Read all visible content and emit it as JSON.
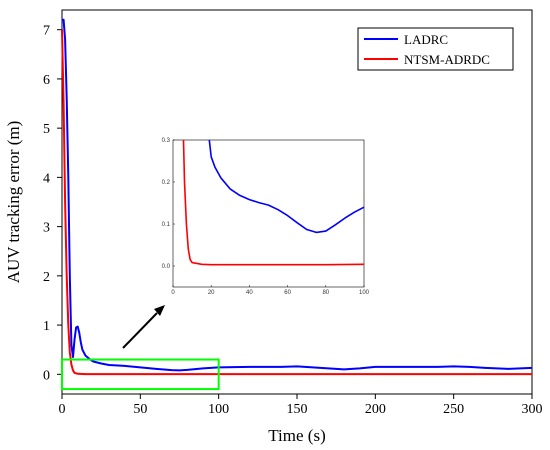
{
  "chart_data": {
    "type": "line",
    "xlabel": "Time (s)",
    "ylabel": "AUV tracking error (m)",
    "xlim": [
      0,
      300
    ],
    "ylim": [
      -0.4,
      7.4
    ],
    "x_ticks": [
      "0",
      "50",
      "100",
      "150",
      "200",
      "250",
      "300"
    ],
    "y_ticks": [
      "0",
      "1",
      "2",
      "3",
      "4",
      "5",
      "6",
      "7"
    ],
    "grid": false,
    "legend_position": "top-right",
    "series": [
      {
        "name": "LADRC",
        "color": "#0000ff",
        "points": [
          [
            0,
            7.2
          ],
          [
            1,
            7.2
          ],
          [
            2,
            6.8
          ],
          [
            3,
            5.6
          ],
          [
            4,
            4.0
          ],
          [
            5,
            2.0
          ],
          [
            6,
            0.6
          ],
          [
            7,
            0.35
          ],
          [
            8,
            0.7
          ],
          [
            9,
            0.95
          ],
          [
            10,
            0.97
          ],
          [
            11,
            0.85
          ],
          [
            12,
            0.65
          ],
          [
            13,
            0.5
          ],
          [
            15,
            0.38
          ],
          [
            18,
            0.3
          ],
          [
            20,
            0.26
          ],
          [
            25,
            0.22
          ],
          [
            30,
            0.19
          ],
          [
            40,
            0.17
          ],
          [
            50,
            0.14
          ],
          [
            60,
            0.11
          ],
          [
            70,
            0.085
          ],
          [
            75,
            0.08
          ],
          [
            80,
            0.09
          ],
          [
            90,
            0.12
          ],
          [
            100,
            0.14
          ],
          [
            120,
            0.15
          ],
          [
            140,
            0.15
          ],
          [
            150,
            0.16
          ],
          [
            160,
            0.14
          ],
          [
            170,
            0.12
          ],
          [
            180,
            0.1
          ],
          [
            190,
            0.12
          ],
          [
            200,
            0.15
          ],
          [
            220,
            0.15
          ],
          [
            240,
            0.15
          ],
          [
            250,
            0.16
          ],
          [
            260,
            0.15
          ],
          [
            270,
            0.13
          ],
          [
            285,
            0.11
          ],
          [
            300,
            0.13
          ]
        ]
      },
      {
        "name": "NTSM-ADRDC",
        "color": "#ff0000",
        "points": [
          [
            0,
            7.0
          ],
          [
            1,
            5.5
          ],
          [
            2,
            3.5
          ],
          [
            3,
            2.0
          ],
          [
            4,
            1.0
          ],
          [
            5,
            0.45
          ],
          [
            6,
            0.2
          ],
          [
            7,
            0.08
          ],
          [
            8,
            0.03
          ],
          [
            10,
            0.01
          ],
          [
            15,
            0.005
          ],
          [
            20,
            0.004
          ],
          [
            50,
            0.004
          ],
          [
            100,
            0.004
          ],
          [
            150,
            0.004
          ],
          [
            200,
            0.004
          ],
          [
            250,
            0.004
          ],
          [
            300,
            0.004
          ]
        ]
      }
    ],
    "annotations": {
      "highlight_box": {
        "x_range": [
          0,
          100
        ],
        "y_range": [
          -0.3,
          0.3
        ],
        "color": "#00ff00"
      },
      "arrow": "from highlight box to inset"
    },
    "inset": {
      "xlim": [
        0,
        100
      ],
      "ylim": [
        -0.05,
        0.3
      ],
      "x_ticks": [
        "0",
        "20",
        "40",
        "60",
        "80",
        "100"
      ],
      "y_ticks": [
        "0.0",
        "0.1",
        "0.2",
        "0.3"
      ],
      "series": [
        {
          "name": "LADRC",
          "color": "#0000ff",
          "points": [
            [
              19,
              0.3
            ],
            [
              20,
              0.26
            ],
            [
              22,
              0.235
            ],
            [
              25,
              0.21
            ],
            [
              30,
              0.183
            ],
            [
              35,
              0.168
            ],
            [
              40,
              0.158
            ],
            [
              45,
              0.151
            ],
            [
              50,
              0.145
            ],
            [
              55,
              0.134
            ],
            [
              60,
              0.12
            ],
            [
              65,
              0.103
            ],
            [
              70,
              0.087
            ],
            [
              75,
              0.08
            ],
            [
              80,
              0.083
            ],
            [
              85,
              0.098
            ],
            [
              90,
              0.114
            ],
            [
              95,
              0.128
            ],
            [
              100,
              0.14
            ]
          ]
        },
        {
          "name": "NTSM-ADRDC",
          "color": "#ff0000",
          "points": [
            [
              5.5,
              0.3
            ],
            [
              6,
              0.2
            ],
            [
              7,
              0.1
            ],
            [
              8,
              0.04
            ],
            [
              9,
              0.015
            ],
            [
              10,
              0.008
            ],
            [
              15,
              0.004
            ],
            [
              20,
              0.003
            ],
            [
              40,
              0.003
            ],
            [
              60,
              0.003
            ],
            [
              80,
              0.003
            ],
            [
              100,
              0.004
            ]
          ]
        }
      ]
    }
  }
}
